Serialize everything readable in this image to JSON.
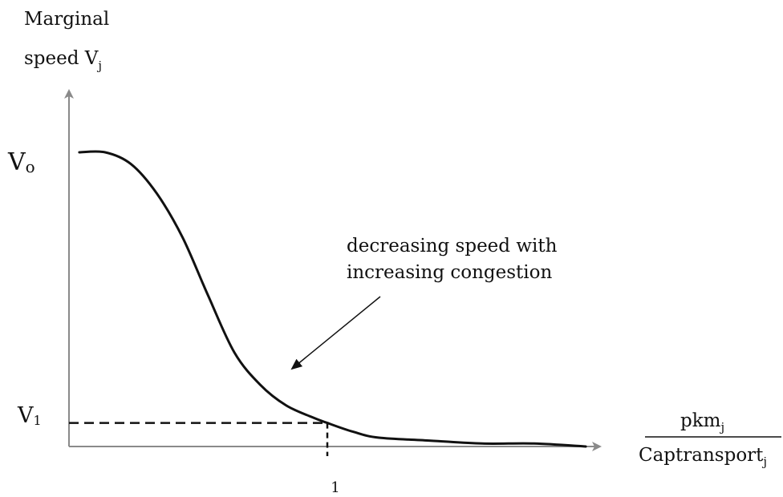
{
  "chart_data": {
    "type": "line",
    "title": "",
    "ylabel_line1": "Marginal",
    "ylabel_line2": "speed V",
    "ylabel_sub": "j",
    "xlabel_numerator": "pkm",
    "xlabel_numerator_sub": "j",
    "xlabel_denominator": "Captransport",
    "xlabel_denominator_sub": "j",
    "y_tick_v0_main": "V",
    "y_tick_v0_sub": "o",
    "y_tick_v1_main": "V",
    "y_tick_v1_sub": "1",
    "x_tick_label": "1",
    "annotation_line1": "decreasing speed with",
    "annotation_line2": "increasing congestion",
    "v0_value": 1.0,
    "v1_value": 0.08,
    "x_marker": 1,
    "xlim": [
      0,
      2.05
    ],
    "ylim": [
      0,
      1.2
    ],
    "grid": false,
    "series": [
      {
        "x": [
          0.04,
          0.14,
          0.24,
          0.34,
          0.44,
          0.54,
          0.64,
          0.74,
          0.84,
          0.94,
          1.0,
          1.1,
          1.2,
          1.4,
          1.6,
          1.8,
          2.0
        ],
        "y": [
          1.0,
          1.0,
          0.96,
          0.86,
          0.71,
          0.51,
          0.32,
          0.21,
          0.14,
          0.1,
          0.08,
          0.05,
          0.03,
          0.02,
          0.01,
          0.01,
          0.0
        ]
      }
    ]
  }
}
